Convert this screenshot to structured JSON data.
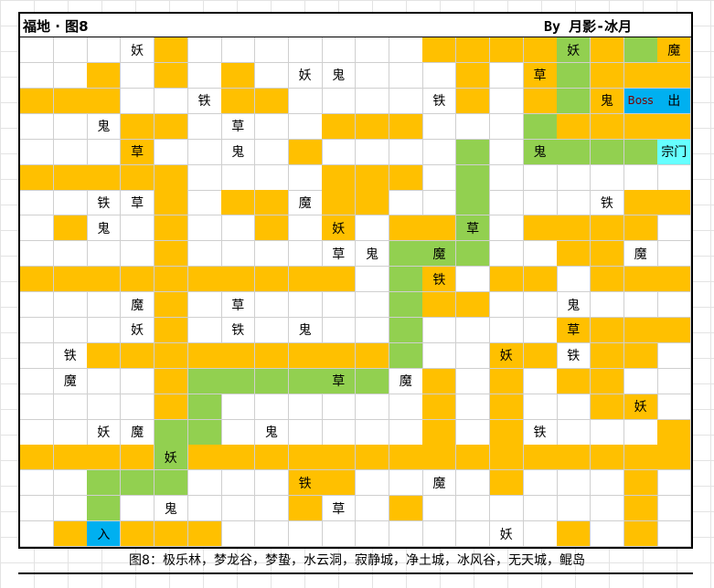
{
  "title": "福地 · 图8",
  "author": "By 月影-冰月",
  "caption": "图8：极乐林，梦龙谷，梦蛰，水云洞，寂静城，净土城，冰风谷，无天城，鲲岛",
  "colors": {
    "O": "#FFC000",
    "G": "#92D050",
    "R": "#FF0000",
    "B": "#00B0F0",
    "C": "#66FFFF",
    "W": "#FFFFFF"
  },
  "grid": {
    "cols": 20,
    "rows": 20,
    "fills": [
      "....O.......OOOOGOGO",
      "..O.O.O......O.OGOOO",
      "OOO...OO.....O.OGOBB",
      "...OO....OOO...GOOOO",
      "...O....O....G.GGGGC",
      "OOOOO....OOO.G......",
      "....O.OO.OO..G....OO",
      ".O..O..O.O.OOG.OOOO.",
      "....O......GGG..OO..",
      "OOOOOOOOOO.GO.OO.OOO",
      "....O......GOO......",
      "....O......G....OOOO",
      "..OOOOOOOOOG..OO.OO.",
      "....OGGGGGG.O.O.OO..",
      "....OG......O.O..OO.",
      "....GG......O.O....O",
      "OOOOGOOOOOOOOOOOOOOO",
      "..GGG...OO....O...O.",
      "..G.....O..O......O.",
      ".OBOOO..........O.O."
    ],
    "labels": [
      {
        "r": 0,
        "c": 3,
        "t": "妖"
      },
      {
        "r": 0,
        "c": 16,
        "t": "妖"
      },
      {
        "r": 0,
        "c": 19,
        "t": "魔"
      },
      {
        "r": 1,
        "c": 8,
        "t": "妖"
      },
      {
        "r": 1,
        "c": 9,
        "t": "鬼"
      },
      {
        "r": 1,
        "c": 15,
        "t": "草"
      },
      {
        "r": 2,
        "c": 5,
        "t": "铁"
      },
      {
        "r": 2,
        "c": 12,
        "t": "铁"
      },
      {
        "r": 2,
        "c": 17,
        "t": "鬼"
      },
      {
        "r": 2,
        "c": 18,
        "t": "Boss"
      },
      {
        "r": 2,
        "c": 19,
        "t": "出"
      },
      {
        "r": 3,
        "c": 2,
        "t": "鬼"
      },
      {
        "r": 3,
        "c": 6,
        "t": "草"
      },
      {
        "r": 4,
        "c": 3,
        "t": "草"
      },
      {
        "r": 4,
        "c": 6,
        "t": "鬼"
      },
      {
        "r": 4,
        "c": 15,
        "t": "鬼"
      },
      {
        "r": 4,
        "c": 19,
        "t": "宗门"
      },
      {
        "r": 6,
        "c": 2,
        "t": "铁"
      },
      {
        "r": 6,
        "c": 3,
        "t": "草"
      },
      {
        "r": 6,
        "c": 8,
        "t": "魔"
      },
      {
        "r": 6,
        "c": 17,
        "t": "铁"
      },
      {
        "r": 7,
        "c": 2,
        "t": "鬼"
      },
      {
        "r": 7,
        "c": 9,
        "t": "妖"
      },
      {
        "r": 7,
        "c": 13,
        "t": "草"
      },
      {
        "r": 8,
        "c": 9,
        "t": "草"
      },
      {
        "r": 8,
        "c": 10,
        "t": "鬼"
      },
      {
        "r": 8,
        "c": 12,
        "t": "魔"
      },
      {
        "r": 8,
        "c": 18,
        "t": "魔"
      },
      {
        "r": 9,
        "c": 12,
        "t": "铁"
      },
      {
        "r": 10,
        "c": 3,
        "t": "魔"
      },
      {
        "r": 10,
        "c": 6,
        "t": "草"
      },
      {
        "r": 10,
        "c": 16,
        "t": "鬼"
      },
      {
        "r": 11,
        "c": 3,
        "t": "妖"
      },
      {
        "r": 11,
        "c": 6,
        "t": "铁"
      },
      {
        "r": 11,
        "c": 8,
        "t": "鬼"
      },
      {
        "r": 11,
        "c": 16,
        "t": "草"
      },
      {
        "r": 12,
        "c": 1,
        "t": "铁"
      },
      {
        "r": 12,
        "c": 14,
        "t": "妖"
      },
      {
        "r": 12,
        "c": 16,
        "t": "铁"
      },
      {
        "r": 13,
        "c": 1,
        "t": "魔"
      },
      {
        "r": 13,
        "c": 9,
        "t": "草"
      },
      {
        "r": 13,
        "c": 11,
        "t": "魔"
      },
      {
        "r": 14,
        "c": 18,
        "t": "妖"
      },
      {
        "r": 15,
        "c": 2,
        "t": "妖"
      },
      {
        "r": 15,
        "c": 3,
        "t": "魔"
      },
      {
        "r": 15,
        "c": 7,
        "t": "鬼"
      },
      {
        "r": 15,
        "c": 15,
        "t": "铁"
      },
      {
        "r": 16,
        "c": 4,
        "t": "妖"
      },
      {
        "r": 17,
        "c": 8,
        "t": "铁"
      },
      {
        "r": 17,
        "c": 12,
        "t": "魔"
      },
      {
        "r": 18,
        "c": 4,
        "t": "鬼"
      },
      {
        "r": 18,
        "c": 9,
        "t": "草"
      },
      {
        "r": 19,
        "c": 2,
        "t": "入"
      },
      {
        "r": 19,
        "c": 14,
        "t": "妖"
      }
    ]
  }
}
